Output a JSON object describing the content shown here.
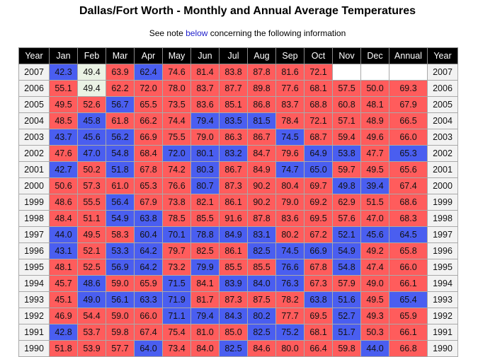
{
  "title": "Dallas/Fort Worth - Monthly and Annual Average Temperatures",
  "note": {
    "before": "See note ",
    "link": "below",
    "after": " concerning the following information"
  },
  "colors": {
    "above": "#ff5c5c",
    "below": "#4a5ef0",
    "normal": "#eaf2e4"
  },
  "headers": [
    "Year",
    "Jan",
    "Feb",
    "Mar",
    "Apr",
    "May",
    "Jun",
    "Jul",
    "Aug",
    "Sep",
    "Oct",
    "Nov",
    "Dec",
    "Annual",
    "Year"
  ],
  "rows": [
    {
      "year": "2007",
      "cells": [
        [
          "42.3",
          "b"
        ],
        [
          "49.4",
          "g"
        ],
        [
          "63.9",
          "r"
        ],
        [
          "62.4",
          "b"
        ],
        [
          "74.6",
          "r"
        ],
        [
          "81.4",
          "r"
        ],
        [
          "83.8",
          "r"
        ],
        [
          "87.8",
          "r"
        ],
        [
          "81.6",
          "r"
        ],
        [
          "72.1",
          "r"
        ],
        [
          "",
          "e"
        ],
        [
          "",
          "e"
        ],
        [
          "",
          "e"
        ]
      ]
    },
    {
      "year": "2006",
      "cells": [
        [
          "55.1",
          "r"
        ],
        [
          "49.4",
          "g"
        ],
        [
          "62.2",
          "r"
        ],
        [
          "72.0",
          "r"
        ],
        [
          "78.0",
          "r"
        ],
        [
          "83.7",
          "r"
        ],
        [
          "87.7",
          "r"
        ],
        [
          "89.8",
          "r"
        ],
        [
          "77.6",
          "r"
        ],
        [
          "68.1",
          "r"
        ],
        [
          "57.5",
          "r"
        ],
        [
          "50.0",
          "r"
        ],
        [
          "69.3",
          "r"
        ]
      ]
    },
    {
      "year": "2005",
      "cells": [
        [
          "49.5",
          "r"
        ],
        [
          "52.6",
          "r"
        ],
        [
          "56.7",
          "b"
        ],
        [
          "65.5",
          "r"
        ],
        [
          "73.5",
          "r"
        ],
        [
          "83.6",
          "r"
        ],
        [
          "85.1",
          "r"
        ],
        [
          "86.8",
          "r"
        ],
        [
          "83.7",
          "r"
        ],
        [
          "68.8",
          "r"
        ],
        [
          "60.8",
          "r"
        ],
        [
          "48.1",
          "r"
        ],
        [
          "67.9",
          "r"
        ]
      ]
    },
    {
      "year": "2004",
      "cells": [
        [
          "48.5",
          "r"
        ],
        [
          "45.8",
          "b"
        ],
        [
          "61.8",
          "r"
        ],
        [
          "66.2",
          "r"
        ],
        [
          "74.4",
          "r"
        ],
        [
          "79.4",
          "b"
        ],
        [
          "83.5",
          "b"
        ],
        [
          "81.5",
          "b"
        ],
        [
          "78.4",
          "r"
        ],
        [
          "72.1",
          "r"
        ],
        [
          "57.1",
          "r"
        ],
        [
          "48.9",
          "r"
        ],
        [
          "66.5",
          "r"
        ]
      ]
    },
    {
      "year": "2003",
      "cells": [
        [
          "43.7",
          "b"
        ],
        [
          "45.6",
          "b"
        ],
        [
          "56.2",
          "b"
        ],
        [
          "66.9",
          "r"
        ],
        [
          "75.5",
          "r"
        ],
        [
          "79.0",
          "r"
        ],
        [
          "86.3",
          "r"
        ],
        [
          "86.7",
          "r"
        ],
        [
          "74.5",
          "b"
        ],
        [
          "68.7",
          "r"
        ],
        [
          "59.4",
          "r"
        ],
        [
          "49.6",
          "r"
        ],
        [
          "66.0",
          "r"
        ]
      ]
    },
    {
      "year": "2002",
      "cells": [
        [
          "47.6",
          "r"
        ],
        [
          "47.0",
          "b"
        ],
        [
          "54.8",
          "b"
        ],
        [
          "68.4",
          "r"
        ],
        [
          "72.0",
          "b"
        ],
        [
          "80.1",
          "b"
        ],
        [
          "83.2",
          "b"
        ],
        [
          "84.7",
          "r"
        ],
        [
          "79.6",
          "r"
        ],
        [
          "64.9",
          "b"
        ],
        [
          "53.8",
          "b"
        ],
        [
          "47.7",
          "r"
        ],
        [
          "65.3",
          "b"
        ]
      ]
    },
    {
      "year": "2001",
      "cells": [
        [
          "42.7",
          "b"
        ],
        [
          "50.2",
          "r"
        ],
        [
          "51.8",
          "b"
        ],
        [
          "67.8",
          "r"
        ],
        [
          "74.2",
          "r"
        ],
        [
          "80.3",
          "b"
        ],
        [
          "86.7",
          "r"
        ],
        [
          "84.9",
          "r"
        ],
        [
          "74.7",
          "b"
        ],
        [
          "65.0",
          "b"
        ],
        [
          "59.7",
          "r"
        ],
        [
          "49.5",
          "r"
        ],
        [
          "65.6",
          "r"
        ]
      ]
    },
    {
      "year": "2000",
      "cells": [
        [
          "50.6",
          "r"
        ],
        [
          "57.3",
          "r"
        ],
        [
          "61.0",
          "r"
        ],
        [
          "65.3",
          "r"
        ],
        [
          "76.6",
          "r"
        ],
        [
          "80.7",
          "b"
        ],
        [
          "87.3",
          "r"
        ],
        [
          "90.2",
          "r"
        ],
        [
          "80.4",
          "r"
        ],
        [
          "69.7",
          "r"
        ],
        [
          "49.8",
          "b"
        ],
        [
          "39.4",
          "b"
        ],
        [
          "67.4",
          "r"
        ]
      ]
    },
    {
      "year": "1999",
      "cells": [
        [
          "48.6",
          "r"
        ],
        [
          "55.5",
          "r"
        ],
        [
          "56.4",
          "b"
        ],
        [
          "67.9",
          "r"
        ],
        [
          "73.8",
          "r"
        ],
        [
          "82.1",
          "r"
        ],
        [
          "86.1",
          "r"
        ],
        [
          "90.2",
          "r"
        ],
        [
          "79.0",
          "r"
        ],
        [
          "69.2",
          "r"
        ],
        [
          "62.9",
          "r"
        ],
        [
          "51.5",
          "r"
        ],
        [
          "68.6",
          "r"
        ]
      ]
    },
    {
      "year": "1998",
      "cells": [
        [
          "48.4",
          "r"
        ],
        [
          "51.1",
          "r"
        ],
        [
          "54.9",
          "b"
        ],
        [
          "63.8",
          "b"
        ],
        [
          "78.5",
          "r"
        ],
        [
          "85.5",
          "r"
        ],
        [
          "91.6",
          "r"
        ],
        [
          "87.8",
          "r"
        ],
        [
          "83.6",
          "r"
        ],
        [
          "69.5",
          "r"
        ],
        [
          "57.6",
          "r"
        ],
        [
          "47.0",
          "r"
        ],
        [
          "68.3",
          "r"
        ]
      ]
    },
    {
      "year": "1997",
      "cells": [
        [
          "44.0",
          "b"
        ],
        [
          "49.5",
          "r"
        ],
        [
          "58.3",
          "r"
        ],
        [
          "60.4",
          "b"
        ],
        [
          "70.1",
          "b"
        ],
        [
          "78.8",
          "b"
        ],
        [
          "84.9",
          "b"
        ],
        [
          "83.1",
          "b"
        ],
        [
          "80.2",
          "r"
        ],
        [
          "67.2",
          "r"
        ],
        [
          "52.1",
          "b"
        ],
        [
          "45.6",
          "b"
        ],
        [
          "64.5",
          "b"
        ]
      ]
    },
    {
      "year": "1996",
      "cells": [
        [
          "43.1",
          "b"
        ],
        [
          "52.1",
          "r"
        ],
        [
          "53.3",
          "b"
        ],
        [
          "64.2",
          "b"
        ],
        [
          "79.7",
          "r"
        ],
        [
          "82.5",
          "r"
        ],
        [
          "86.1",
          "r"
        ],
        [
          "82.5",
          "b"
        ],
        [
          "74.5",
          "b"
        ],
        [
          "66.9",
          "b"
        ],
        [
          "54.9",
          "b"
        ],
        [
          "49.2",
          "r"
        ],
        [
          "65.8",
          "r"
        ]
      ]
    },
    {
      "year": "1995",
      "cells": [
        [
          "48.1",
          "r"
        ],
        [
          "52.5",
          "r"
        ],
        [
          "56.9",
          "b"
        ],
        [
          "64.2",
          "b"
        ],
        [
          "73.2",
          "r"
        ],
        [
          "79.9",
          "b"
        ],
        [
          "85.5",
          "r"
        ],
        [
          "85.5",
          "r"
        ],
        [
          "76.6",
          "b"
        ],
        [
          "67.8",
          "r"
        ],
        [
          "54.8",
          "b"
        ],
        [
          "47.4",
          "r"
        ],
        [
          "66.0",
          "r"
        ]
      ]
    },
    {
      "year": "1994",
      "cells": [
        [
          "45.7",
          "r"
        ],
        [
          "48.6",
          "b"
        ],
        [
          "59.0",
          "r"
        ],
        [
          "65.9",
          "r"
        ],
        [
          "71.5",
          "b"
        ],
        [
          "84.1",
          "r"
        ],
        [
          "83.9",
          "b"
        ],
        [
          "84.0",
          "b"
        ],
        [
          "76.3",
          "b"
        ],
        [
          "67.3",
          "r"
        ],
        [
          "57.9",
          "r"
        ],
        [
          "49.0",
          "r"
        ],
        [
          "66.1",
          "r"
        ]
      ]
    },
    {
      "year": "1993",
      "cells": [
        [
          "45.1",
          "r"
        ],
        [
          "49.0",
          "b"
        ],
        [
          "56.1",
          "b"
        ],
        [
          "63.3",
          "b"
        ],
        [
          "71.9",
          "b"
        ],
        [
          "81.7",
          "r"
        ],
        [
          "87.3",
          "r"
        ],
        [
          "87.5",
          "r"
        ],
        [
          "78.2",
          "r"
        ],
        [
          "63.8",
          "b"
        ],
        [
          "51.6",
          "b"
        ],
        [
          "49.5",
          "r"
        ],
        [
          "65.4",
          "b"
        ]
      ]
    },
    {
      "year": "1992",
      "cells": [
        [
          "46.9",
          "r"
        ],
        [
          "54.4",
          "r"
        ],
        [
          "59.0",
          "r"
        ],
        [
          "66.0",
          "r"
        ],
        [
          "71.1",
          "b"
        ],
        [
          "79.4",
          "b"
        ],
        [
          "84.3",
          "b"
        ],
        [
          "80.2",
          "b"
        ],
        [
          "77.7",
          "r"
        ],
        [
          "69.5",
          "r"
        ],
        [
          "52.7",
          "b"
        ],
        [
          "49.3",
          "r"
        ],
        [
          "65.9",
          "r"
        ]
      ]
    },
    {
      "year": "1991",
      "cells": [
        [
          "42.8",
          "b"
        ],
        [
          "53.7",
          "r"
        ],
        [
          "59.8",
          "r"
        ],
        [
          "67.4",
          "r"
        ],
        [
          "75.4",
          "r"
        ],
        [
          "81.0",
          "r"
        ],
        [
          "85.0",
          "r"
        ],
        [
          "82.5",
          "b"
        ],
        [
          "75.2",
          "b"
        ],
        [
          "68.1",
          "r"
        ],
        [
          "51.7",
          "b"
        ],
        [
          "50.3",
          "r"
        ],
        [
          "66.1",
          "r"
        ]
      ]
    },
    {
      "year": "1990",
      "cells": [
        [
          "51.8",
          "r"
        ],
        [
          "53.9",
          "r"
        ],
        [
          "57.7",
          "r"
        ],
        [
          "64.0",
          "b"
        ],
        [
          "73.4",
          "r"
        ],
        [
          "84.0",
          "r"
        ],
        [
          "82.5",
          "b"
        ],
        [
          "84.6",
          "r"
        ],
        [
          "80.0",
          "r"
        ],
        [
          "66.4",
          "r"
        ],
        [
          "59.8",
          "r"
        ],
        [
          "44.0",
          "b"
        ],
        [
          "66.8",
          "r"
        ]
      ]
    }
  ]
}
